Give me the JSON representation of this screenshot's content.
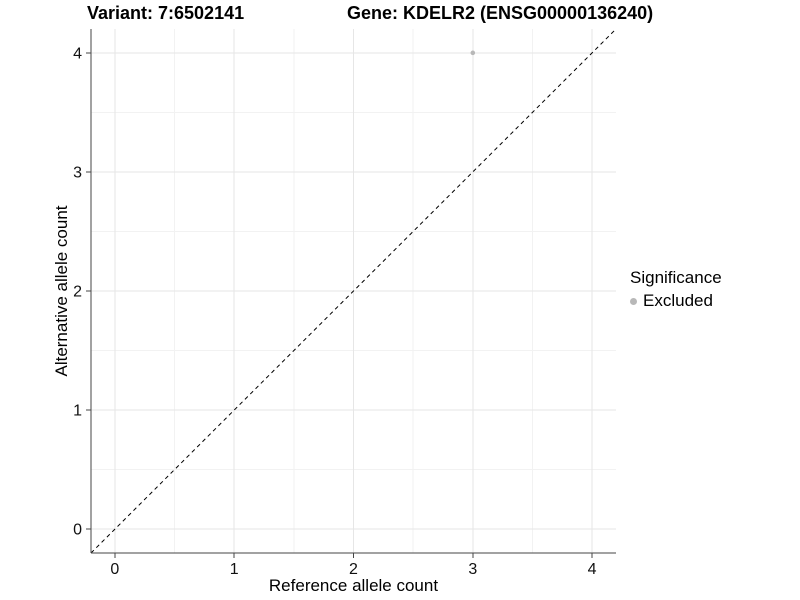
{
  "chart_data": {
    "type": "scatter",
    "title_left": "Variant: 7:6502141",
    "title_right": "Gene: KDELR2 (ENSG00000136240)",
    "xlabel": "Reference allele count",
    "ylabel": "Alternative allele count",
    "xlim": [
      -0.2,
      4.2
    ],
    "ylim": [
      -0.2,
      4.2
    ],
    "x_ticks": [
      0,
      1,
      2,
      3,
      4
    ],
    "y_ticks": [
      0,
      1,
      2,
      3,
      4
    ],
    "minor_ticks_x": [
      0.5,
      1.5,
      2.5,
      3.5
    ],
    "minor_ticks_y": [
      0.5,
      1.5,
      2.5,
      3.5
    ],
    "grid": true,
    "reference_line": {
      "type": "identity",
      "slope": 1,
      "intercept": 0,
      "style": "dashed",
      "color": "#000000"
    },
    "series": [
      {
        "name": "Excluded",
        "color": "#b8b8b8",
        "points": [
          {
            "x": 3,
            "y": 4
          }
        ]
      }
    ],
    "legend": {
      "title": "Significance",
      "position": "right",
      "items": [
        {
          "label": "Excluded",
          "color": "#b8b8b8"
        }
      ]
    },
    "colors": {
      "grid_major": "#e6e6e6",
      "grid_minor": "#f2f2f2",
      "axis": "#454545",
      "tick_text": "#111111",
      "background": "#ffffff"
    }
  }
}
